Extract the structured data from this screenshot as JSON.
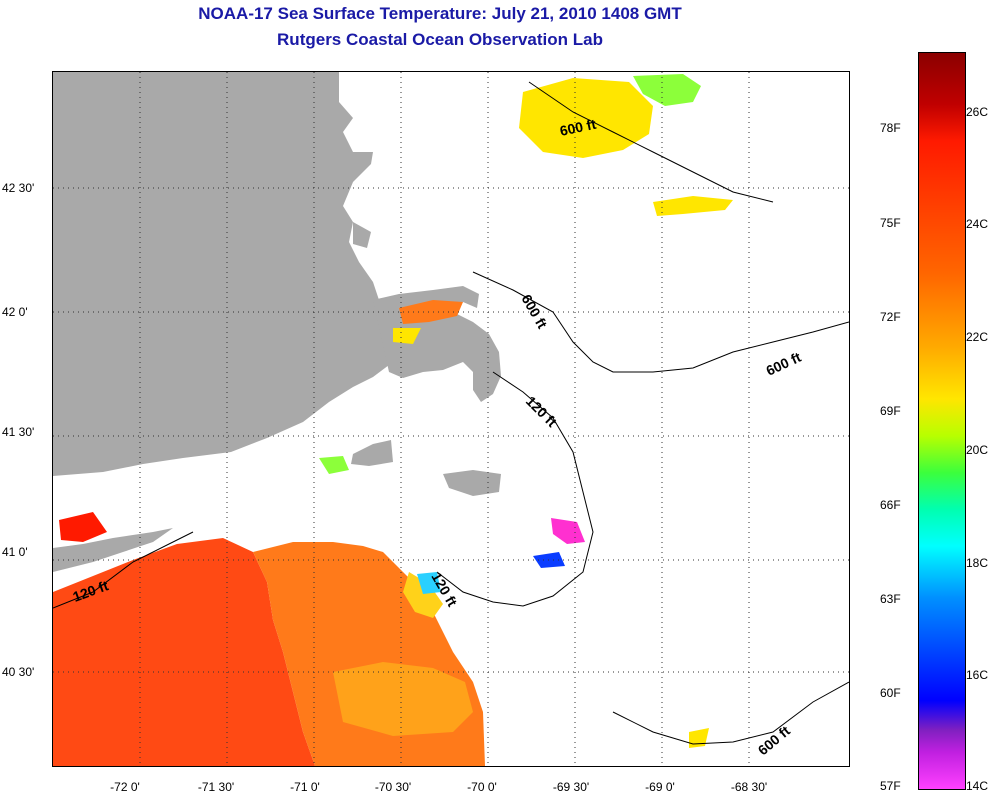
{
  "title": {
    "line1": "NOAA-17 Sea Surface Temperature:  July 21, 2010 1408 GMT",
    "line2": "Rutgers Coastal Ocean Observation Lab"
  },
  "axes": {
    "longitude_labels": [
      "-72 0'",
      "-71 30'",
      "-71 0'",
      "-70 30'",
      "-70 0'",
      "-69 30'",
      "-69 0'",
      "-68 30'"
    ],
    "latitude_labels": [
      "42 30'",
      "42 0'",
      "41 30'",
      "41 0'",
      "40 30'"
    ]
  },
  "depth_contour_labels": [
    "600 ft",
    "600 ft",
    "600 ft",
    "600 ft",
    "120 ft",
    "120 ft",
    "120 ft"
  ],
  "colorbar": {
    "fahrenheit_labels": [
      "78F",
      "75F",
      "72F",
      "69F",
      "66F",
      "63F",
      "60F",
      "57F"
    ],
    "celsius_labels": [
      "26C",
      "24C",
      "22C",
      "20C",
      "18C",
      "16C",
      "14C"
    ]
  },
  "colors": {
    "land": "#a9a9a9",
    "title": "#1a1aa6",
    "warm": "#ff4a14",
    "orange": "#ff8a1a",
    "yellow": "#ffe000",
    "green": "#8cff3a",
    "cyan": "#2ad0ff",
    "blue": "#0a3cff",
    "magenta": "#ff30d0"
  }
}
